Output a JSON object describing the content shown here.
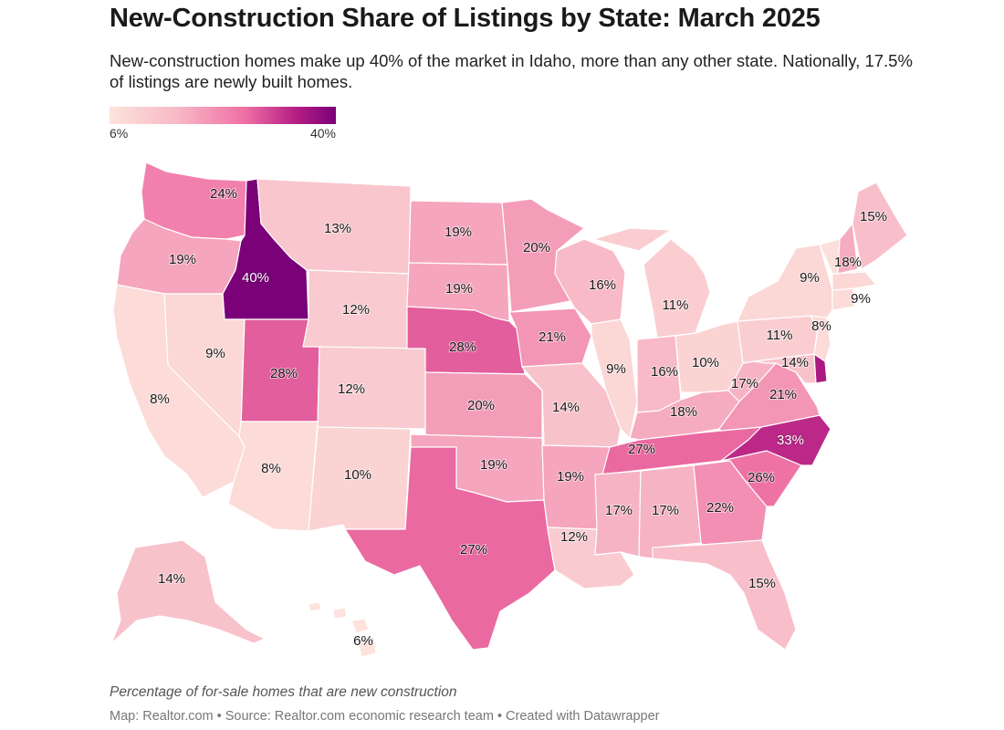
{
  "header": {
    "title": "New-Construction Share of Listings by State: March 2025",
    "subtitle": "New-construction homes make up 40% of the market in Idaho, more than any other state. Nationally, 17.5% of listings are newly built homes."
  },
  "legend": {
    "min_label": "6%",
    "max_label": "40%",
    "min": 6,
    "max": 40
  },
  "footer": {
    "caption": "Percentage of for-sale homes that are new construction",
    "credit": "Map: Realtor.com • Source: Realtor.com economic research team • Created with Datawrapper"
  },
  "colors": {
    "low": "#fde3dc",
    "mid": "#ef6fa4",
    "high": "#7a0177",
    "border": "#ffffff"
  },
  "states": [
    {
      "id": "WA",
      "label": "24%",
      "value": 24
    },
    {
      "id": "OR",
      "label": "19%",
      "value": 19
    },
    {
      "id": "CA",
      "label": "8%",
      "value": 8
    },
    {
      "id": "ID",
      "label": "40%",
      "value": 40
    },
    {
      "id": "NV",
      "label": "9%",
      "value": 9
    },
    {
      "id": "MT",
      "label": "13%",
      "value": 13
    },
    {
      "id": "WY",
      "label": "12%",
      "value": 12
    },
    {
      "id": "UT",
      "label": "28%",
      "value": 28
    },
    {
      "id": "AZ",
      "label": "8%",
      "value": 8
    },
    {
      "id": "CO",
      "label": "12%",
      "value": 12
    },
    {
      "id": "NM",
      "label": "10%",
      "value": 10
    },
    {
      "id": "ND",
      "label": "19%",
      "value": 19
    },
    {
      "id": "SD",
      "label": "19%",
      "value": 19
    },
    {
      "id": "NE",
      "label": "28%",
      "value": 28
    },
    {
      "id": "KS",
      "label": "20%",
      "value": 20
    },
    {
      "id": "OK",
      "label": "19%",
      "value": 19
    },
    {
      "id": "TX",
      "label": "27%",
      "value": 27
    },
    {
      "id": "MN",
      "label": "20%",
      "value": 20
    },
    {
      "id": "IA",
      "label": "21%",
      "value": 21
    },
    {
      "id": "MO",
      "label": "14%",
      "value": 14
    },
    {
      "id": "AR",
      "label": "19%",
      "value": 19
    },
    {
      "id": "LA",
      "label": "12%",
      "value": 12
    },
    {
      "id": "WI",
      "label": "16%",
      "value": 16
    },
    {
      "id": "IL",
      "label": "9%",
      "value": 9
    },
    {
      "id": "MI",
      "label": "11%",
      "value": 11
    },
    {
      "id": "IN",
      "label": "16%",
      "value": 16
    },
    {
      "id": "OH",
      "label": "10%",
      "value": 10
    },
    {
      "id": "KY",
      "label": "18%",
      "value": 18
    },
    {
      "id": "TN",
      "label": "27%",
      "value": 27
    },
    {
      "id": "MS",
      "label": "17%",
      "value": 17
    },
    {
      "id": "AL",
      "label": "17%",
      "value": 17
    },
    {
      "id": "GA",
      "label": "22%",
      "value": 22
    },
    {
      "id": "FL",
      "label": "15%",
      "value": 15
    },
    {
      "id": "SC",
      "label": "26%",
      "value": 26
    },
    {
      "id": "NC",
      "label": "33%",
      "value": 33
    },
    {
      "id": "VA",
      "label": "21%",
      "value": 21
    },
    {
      "id": "WV",
      "label": "17%",
      "value": 17
    },
    {
      "id": "PA",
      "label": "11%",
      "value": 11
    },
    {
      "id": "MD",
      "label": "14%",
      "value": 14
    },
    {
      "id": "DE",
      "label": "",
      "value": 35
    },
    {
      "id": "NJ",
      "label": "8%",
      "value": 8
    },
    {
      "id": "NY",
      "label": "9%",
      "value": 9
    },
    {
      "id": "CT",
      "label": "",
      "value": 8
    },
    {
      "id": "MA",
      "label": "9%",
      "value": 9
    },
    {
      "id": "VT",
      "label": "",
      "value": 7
    },
    {
      "id": "NH",
      "label": "18%",
      "value": 18
    },
    {
      "id": "ME",
      "label": "15%",
      "value": 15
    },
    {
      "id": "AK",
      "label": "14%",
      "value": 14
    },
    {
      "id": "HI",
      "label": "6%",
      "value": 6
    }
  ]
}
